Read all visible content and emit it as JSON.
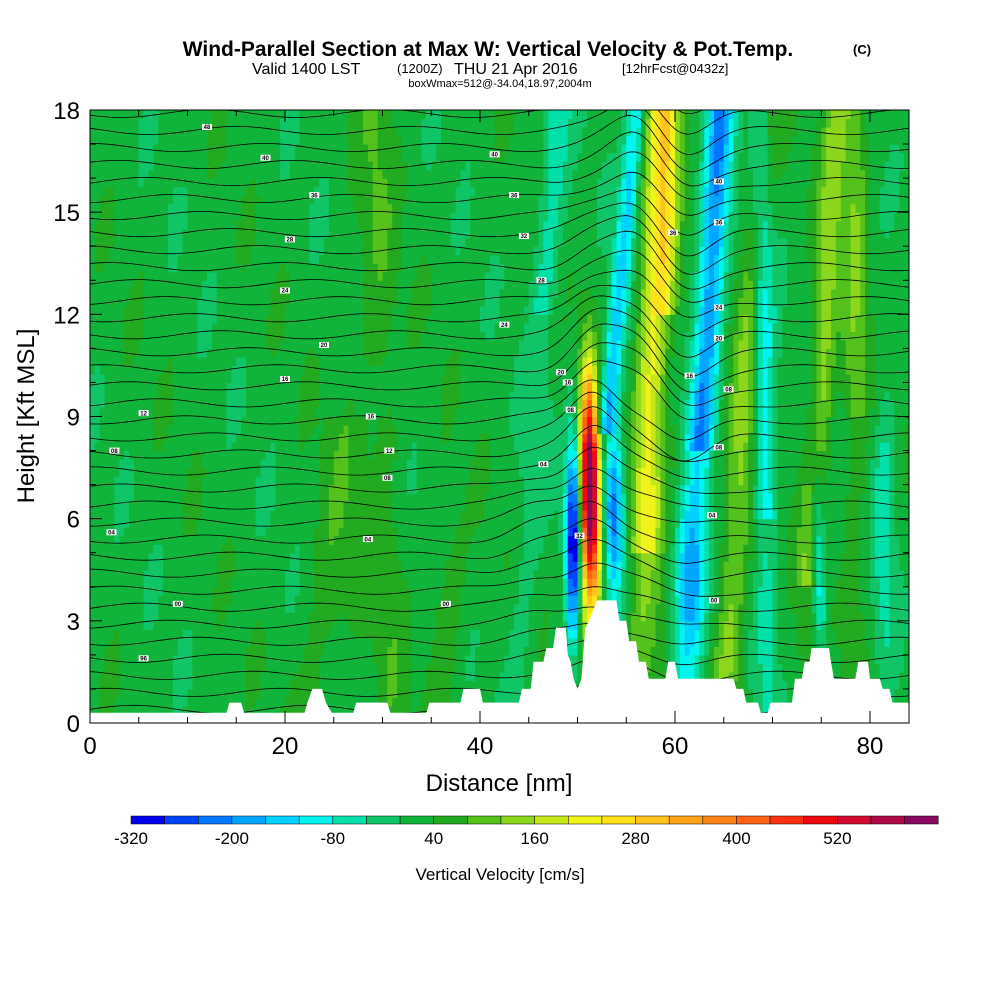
{
  "title": {
    "main": "Wind-Parallel Section at Max W: Vertical Velocity & Pot.Temp.",
    "copyright": "(C)",
    "line2_a": "Valid 1400 LST",
    "line2_b": "(1200Z)",
    "line2_c": "THU 21 Apr 2016",
    "line2_d": "[12hrFcst@0432z]",
    "line3": "boxWmax=512@-34.04,18.97,2004m"
  },
  "chart_data": {
    "type": "heatmap",
    "xlabel": "Distance [nm]",
    "ylabel": "Height [Kft MSL]",
    "xlim": [
      0,
      84
    ],
    "ylim": [
      0,
      18
    ],
    "x_ticks": [
      0,
      20,
      40,
      60,
      80
    ],
    "y_ticks": [
      0,
      3,
      6,
      9,
      12,
      15,
      18
    ],
    "colorbar": {
      "label": "Vertical Velocity [cm/s]",
      "tick_labels": [
        "-320",
        "-200",
        "-80",
        "40",
        "160",
        "280",
        "400",
        "520"
      ],
      "tick_values": [
        -320,
        -200,
        -80,
        40,
        160,
        280,
        400,
        520
      ],
      "min": -320,
      "max": 560,
      "step": 40,
      "colors": [
        "#0000ee",
        "#0044ff",
        "#0077ff",
        "#00a6ff",
        "#00d2ff",
        "#00f5ee",
        "#00e0a8",
        "#10c468",
        "#10b43a",
        "#22aa20",
        "#55c21c",
        "#8cd61c",
        "#c4e81a",
        "#f0f41a",
        "#ffe21c",
        "#ffc41c",
        "#ffa418",
        "#ff8418",
        "#ff6214",
        "#ff3010",
        "#ee0a10",
        "#d20a30",
        "#b00a48",
        "#880a60"
      ]
    },
    "terrain_kft": [
      [
        0,
        0.3
      ],
      [
        14,
        0.3
      ],
      [
        14.3,
        0.6
      ],
      [
        15.5,
        0.6
      ],
      [
        15.8,
        0.3
      ],
      [
        22,
        0.3
      ],
      [
        22.3,
        0.6
      ],
      [
        22.8,
        1
      ],
      [
        23.8,
        1
      ],
      [
        24.2,
        0.6
      ],
      [
        24.8,
        0.3
      ],
      [
        27,
        0.3
      ],
      [
        27.3,
        0.6
      ],
      [
        30.5,
        0.6
      ],
      [
        30.8,
        0.3
      ],
      [
        34.5,
        0.3
      ],
      [
        34.8,
        0.6
      ],
      [
        38,
        0.6
      ],
      [
        38.3,
        1
      ],
      [
        40,
        1
      ],
      [
        40.3,
        0.6
      ],
      [
        44,
        0.6
      ],
      [
        44.3,
        1
      ],
      [
        45.2,
        1
      ],
      [
        45.5,
        1.8
      ],
      [
        46.5,
        1.8
      ],
      [
        46.8,
        2.2
      ],
      [
        47.5,
        2.2
      ],
      [
        47.8,
        2.8
      ],
      [
        48.8,
        2.8
      ],
      [
        49,
        2
      ],
      [
        49.3,
        1.8
      ],
      [
        49.6,
        1.3
      ],
      [
        50,
        1
      ],
      [
        50.4,
        1.3
      ],
      [
        50.8,
        2.8
      ],
      [
        51.2,
        3
      ],
      [
        52,
        3.6
      ],
      [
        54,
        3.6
      ],
      [
        54.3,
        3
      ],
      [
        55,
        3
      ],
      [
        55.3,
        2.4
      ],
      [
        56,
        2.4
      ],
      [
        56.3,
        1.8
      ],
      [
        57,
        1.8
      ],
      [
        57.3,
        1.3
      ],
      [
        59,
        1.3
      ],
      [
        59.3,
        1.8
      ],
      [
        60,
        1.8
      ],
      [
        60.3,
        1.3
      ],
      [
        66,
        1.3
      ],
      [
        66.3,
        1
      ],
      [
        67,
        1
      ],
      [
        67.3,
        0.6
      ],
      [
        68.5,
        0.6
      ],
      [
        68.8,
        0.3
      ],
      [
        69.5,
        0.3
      ],
      [
        69.8,
        0.6
      ],
      [
        72,
        0.6
      ],
      [
        72.3,
        1.3
      ],
      [
        73,
        1.3
      ],
      [
        73.3,
        1.8
      ],
      [
        73.8,
        1.8
      ],
      [
        74,
        2.2
      ],
      [
        75.8,
        2.2
      ],
      [
        76,
        1.8
      ],
      [
        76.3,
        1.3
      ],
      [
        78.5,
        1.3
      ],
      [
        78.8,
        1.8
      ],
      [
        79.8,
        1.8
      ],
      [
        80,
        1.3
      ],
      [
        81,
        1.3
      ],
      [
        81.3,
        1
      ],
      [
        82,
        1
      ],
      [
        82.3,
        0.6
      ],
      [
        84,
        0.6
      ]
    ],
    "theta_contour_labels": [
      {
        "x": 12,
        "y": 17.5,
        "v": "48"
      },
      {
        "x": 18,
        "y": 16.6,
        "v": "40"
      },
      {
        "x": 23,
        "y": 15.5,
        "v": "36"
      },
      {
        "x": 20.5,
        "y": 14.2,
        "v": "28"
      },
      {
        "x": 20,
        "y": 12.7,
        "v": "24"
      },
      {
        "x": 24,
        "y": 11.1,
        "v": "20"
      },
      {
        "x": 20,
        "y": 10.1,
        "v": "16"
      },
      {
        "x": 5.5,
        "y": 9.1,
        "v": "12"
      },
      {
        "x": 2.5,
        "y": 8.0,
        "v": "08"
      },
      {
        "x": 2.2,
        "y": 5.6,
        "v": "04"
      },
      {
        "x": 9,
        "y": 3.5,
        "v": "00"
      },
      {
        "x": 5.5,
        "y": 1.9,
        "v": "96"
      },
      {
        "x": 36.5,
        "y": 3.5,
        "v": "00"
      },
      {
        "x": 28.5,
        "y": 5.4,
        "v": "04"
      },
      {
        "x": 30.5,
        "y": 7.2,
        "v": "08"
      },
      {
        "x": 30.7,
        "y": 8.0,
        "v": "12"
      },
      {
        "x": 28.8,
        "y": 9.0,
        "v": "16"
      },
      {
        "x": 41.5,
        "y": 16.7,
        "v": "40"
      },
      {
        "x": 43.5,
        "y": 15.5,
        "v": "36"
      },
      {
        "x": 44.5,
        "y": 14.3,
        "v": "32"
      },
      {
        "x": 46.3,
        "y": 13.0,
        "v": "28"
      },
      {
        "x": 42.5,
        "y": 11.7,
        "v": "24"
      },
      {
        "x": 48.3,
        "y": 10.3,
        "v": "20"
      },
      {
        "x": 49,
        "y": 10.0,
        "v": "16"
      },
      {
        "x": 49.3,
        "y": 9.2,
        "v": "08"
      },
      {
        "x": 46.5,
        "y": 7.6,
        "v": "04"
      },
      {
        "x": 50.2,
        "y": 5.5,
        "v": "32"
      },
      {
        "x": 59.8,
        "y": 14.4,
        "v": "36"
      },
      {
        "x": 64.5,
        "y": 15.9,
        "v": "40"
      },
      {
        "x": 64.5,
        "y": 14.7,
        "v": "36"
      },
      {
        "x": 64.5,
        "y": 12.2,
        "v": "24"
      },
      {
        "x": 64.5,
        "y": 11.3,
        "v": "20"
      },
      {
        "x": 61.5,
        "y": 10.2,
        "v": "16"
      },
      {
        "x": 65.5,
        "y": 9.8,
        "v": "08"
      },
      {
        "x": 64.5,
        "y": 8.1,
        "v": "08"
      },
      {
        "x": 63.8,
        "y": 6.1,
        "v": "04"
      },
      {
        "x": 64,
        "y": 3.6,
        "v": "00"
      }
    ]
  }
}
